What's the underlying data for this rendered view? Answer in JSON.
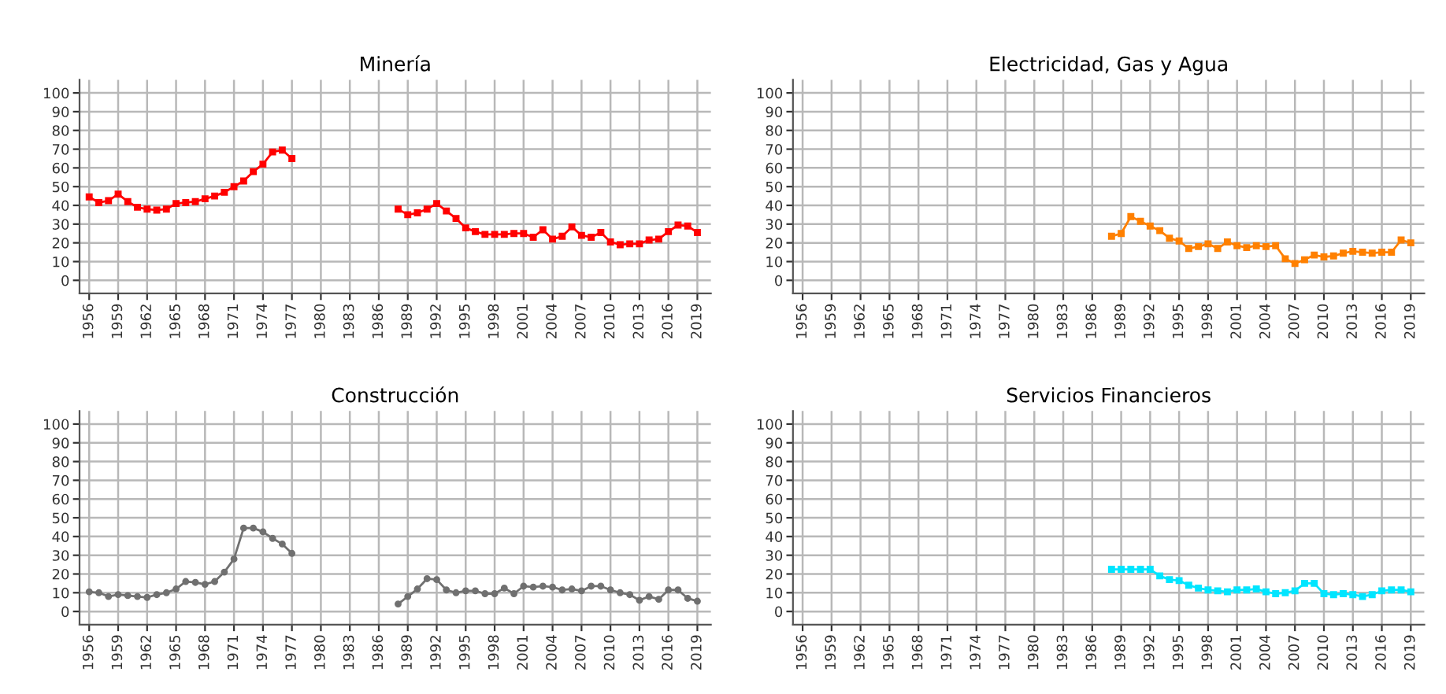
{
  "chart_data": [
    {
      "type": "line",
      "title": "Minería",
      "x": [
        1956,
        1957,
        1958,
        1959,
        1960,
        1961,
        1962,
        1963,
        1964,
        1965,
        1966,
        1967,
        1968,
        1969,
        1970,
        1971,
        1972,
        1973,
        1974,
        1975,
        1976,
        1977,
        1978,
        1979,
        1980,
        1981,
        1982,
        1983,
        1984,
        1985,
        1986,
        1987,
        1988,
        1989,
        1990,
        1991,
        1992,
        1993,
        1994,
        1995,
        1996,
        1997,
        1998,
        1999,
        2000,
        2001,
        2002,
        2003,
        2004,
        2005,
        2006,
        2007,
        2008,
        2009,
        2010,
        2011,
        2012,
        2013,
        2014,
        2015,
        2016,
        2017,
        2018,
        2019
      ],
      "series": [
        {
          "color": "#ff0000",
          "values": [
            44.5,
            41.5,
            42.5,
            46,
            42,
            39,
            38,
            37.5,
            38,
            41,
            41.5,
            42,
            43.5,
            45,
            47,
            50,
            53,
            58,
            62,
            68.5,
            69.5,
            65,
            null,
            null,
            null,
            null,
            null,
            null,
            null,
            null,
            null,
            null,
            38,
            35,
            36,
            38,
            41,
            37,
            33,
            28,
            26,
            24.5,
            24.5,
            24.5,
            25,
            25,
            23,
            27,
            22,
            23.5,
            28.5,
            24,
            23,
            25.5,
            20.5,
            19,
            19.5,
            19.5,
            21.5,
            22,
            26,
            29.5,
            29,
            25.5
          ]
        }
      ],
      "xlim": [
        1955,
        2020.4
      ],
      "xticks": [
        1956,
        1959,
        1962,
        1965,
        1968,
        1971,
        1974,
        1977,
        1980,
        1983,
        1986,
        1989,
        1992,
        1995,
        1998,
        2001,
        2004,
        2007,
        2010,
        2013,
        2016,
        2019
      ],
      "ylim": [
        -7,
        107
      ],
      "yticks": [
        0,
        10,
        20,
        30,
        40,
        50,
        60,
        70,
        80,
        90,
        100
      ],
      "grid": true,
      "marker": "square",
      "line_style": "solid"
    },
    {
      "type": "line",
      "title": "Construcción",
      "x": [
        1956,
        1957,
        1958,
        1959,
        1960,
        1961,
        1962,
        1963,
        1964,
        1965,
        1966,
        1967,
        1968,
        1969,
        1970,
        1971,
        1972,
        1973,
        1974,
        1975,
        1976,
        1977,
        1978,
        1979,
        1980,
        1981,
        1982,
        1983,
        1984,
        1985,
        1986,
        1987,
        1988,
        1989,
        1990,
        1991,
        1992,
        1993,
        1994,
        1995,
        1996,
        1997,
        1998,
        1999,
        2000,
        2001,
        2002,
        2003,
        2004,
        2005,
        2006,
        2007,
        2008,
        2009,
        2010,
        2011,
        2012,
        2013,
        2014,
        2015,
        2016,
        2017,
        2018,
        2019
      ],
      "series": [
        {
          "color": "#707070",
          "values": [
            10.5,
            10,
            8,
            9,
            8.5,
            8,
            7.5,
            9,
            10,
            12,
            16,
            15.5,
            14.5,
            16,
            21,
            28,
            44.5,
            44.5,
            42.5,
            39,
            36,
            31,
            null,
            null,
            null,
            null,
            null,
            null,
            null,
            null,
            null,
            null,
            4,
            8,
            12,
            17.5,
            17,
            11.5,
            10,
            11,
            11,
            9.5,
            9.5,
            12.5,
            9.5,
            13.5,
            13,
            13.5,
            13,
            11.5,
            12,
            11,
            13.5,
            13.5,
            11.5,
            10,
            9,
            6,
            8,
            6.5,
            11.5,
            11.5,
            7,
            5.5
          ]
        }
      ],
      "xlim": [
        1955,
        2020.4
      ],
      "xticks": [
        1956,
        1959,
        1962,
        1965,
        1968,
        1971,
        1974,
        1977,
        1980,
        1983,
        1986,
        1989,
        1992,
        1995,
        1998,
        2001,
        2004,
        2007,
        2010,
        2013,
        2016,
        2019
      ],
      "ylim": [
        -7,
        107
      ],
      "yticks": [
        0,
        10,
        20,
        30,
        40,
        50,
        60,
        70,
        80,
        90,
        100
      ],
      "grid": true,
      "marker": "circle",
      "line_style": "solid"
    },
    {
      "type": "line",
      "title": "Electricidad, Gas y Agua",
      "series": [
        {
          "color": "#ff8000",
          "x": [
            1988,
            1989,
            1990,
            1991,
            1992,
            1993,
            1994,
            1995,
            1996,
            1997,
            1998,
            1999,
            2000,
            2001,
            2002,
            2003,
            2004,
            2005,
            2006,
            2007,
            2008,
            2009,
            2010,
            2011,
            2012,
            2013,
            2014,
            2015,
            2016,
            2017,
            2018,
            2019
          ],
          "values": [
            23.5,
            25,
            34,
            31.5,
            29,
            26.5,
            22.5,
            21,
            17,
            18,
            19.5,
            17,
            20.5,
            18.5,
            17.5,
            18.5,
            18,
            18.5,
            11.5,
            9,
            11,
            13.5,
            12.5,
            13,
            14.5,
            15.5,
            15,
            14.5,
            15,
            15,
            21.5,
            20
          ]
        }
      ],
      "xlim": [
        1955,
        2020.4
      ],
      "xticks": [
        1956,
        1959,
        1962,
        1965,
        1968,
        1971,
        1974,
        1977,
        1980,
        1983,
        1986,
        1989,
        1992,
        1995,
        1998,
        2001,
        2004,
        2007,
        2010,
        2013,
        2016,
        2019
      ],
      "ylim": [
        -7,
        107
      ],
      "yticks": [
        0,
        10,
        20,
        30,
        40,
        50,
        60,
        70,
        80,
        90,
        100
      ],
      "grid": true,
      "marker": "square",
      "line_style": "solid"
    },
    {
      "type": "line",
      "title": "Servicios Financieros",
      "series": [
        {
          "color": "#00e5ff",
          "x": [
            1988,
            1989,
            1990,
            1991,
            1992,
            1993,
            1994,
            1995,
            1996,
            1997,
            1998,
            1999,
            2000,
            2001,
            2002,
            2003,
            2004,
            2005,
            2006,
            2007,
            2008,
            2009,
            2010,
            2011,
            2012,
            2013,
            2014,
            2015,
            2016,
            2017,
            2018,
            2019
          ],
          "values": [
            22.5,
            22.5,
            22.5,
            22.5,
            22.5,
            19,
            17,
            16.5,
            14,
            12.5,
            11.5,
            11,
            10.5,
            11.5,
            11.5,
            12,
            10.5,
            9.5,
            10,
            11,
            15,
            15,
            9.5,
            9,
            9.5,
            9,
            8,
            9,
            11,
            11.5,
            11.5,
            10.5
          ]
        }
      ],
      "xlim": [
        1955,
        2020.4
      ],
      "xticks": [
        1956,
        1959,
        1962,
        1965,
        1968,
        1971,
        1974,
        1977,
        1980,
        1983,
        1986,
        1989,
        1992,
        1995,
        1998,
        2001,
        2004,
        2007,
        2010,
        2013,
        2016,
        2019
      ],
      "ylim": [
        -7,
        107
      ],
      "yticks": [
        0,
        10,
        20,
        30,
        40,
        50,
        60,
        70,
        80,
        90,
        100
      ],
      "grid": true,
      "marker": "square",
      "line_style": "solid"
    }
  ]
}
